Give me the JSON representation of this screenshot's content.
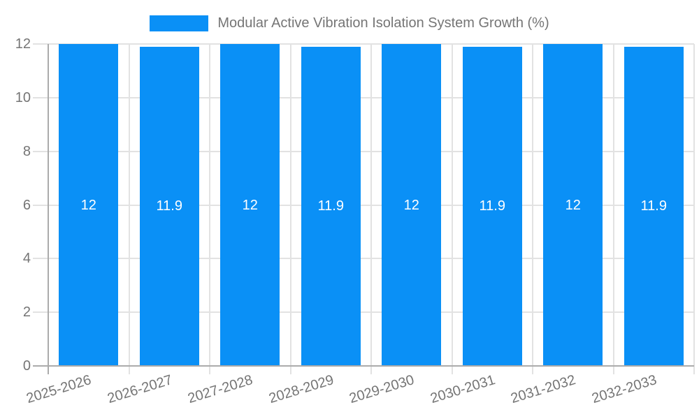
{
  "chart_data": {
    "type": "bar",
    "title": "Modular Active Vibration Isolation System Growth (%)",
    "categories": [
      "2025-2026",
      "2026-2027",
      "2027-2028",
      "2028-2029",
      "2029-2030",
      "2030-2031",
      "2031-2032",
      "2032-2033"
    ],
    "series": [
      {
        "name": "Modular Active Vibration Isolation System Growth (%)",
        "values": [
          12,
          11.9,
          12,
          11.9,
          12,
          11.9,
          12,
          11.9
        ]
      }
    ],
    "value_labels": [
      "12",
      "11.9",
      "12",
      "11.9",
      "12",
      "11.9",
      "12",
      "11.9"
    ],
    "xlabel": "",
    "ylabel": "",
    "ylim": [
      0,
      12
    ],
    "yticks": [
      0,
      2,
      4,
      6,
      8,
      10,
      12
    ],
    "grid": true,
    "legend_position": "top",
    "colors": {
      "bar": "#0a90f6",
      "grid": "#e2e2e2",
      "axis": "#ababab",
      "text": "#757575",
      "value_label": "#ffffff",
      "background": "#ffffff"
    }
  }
}
